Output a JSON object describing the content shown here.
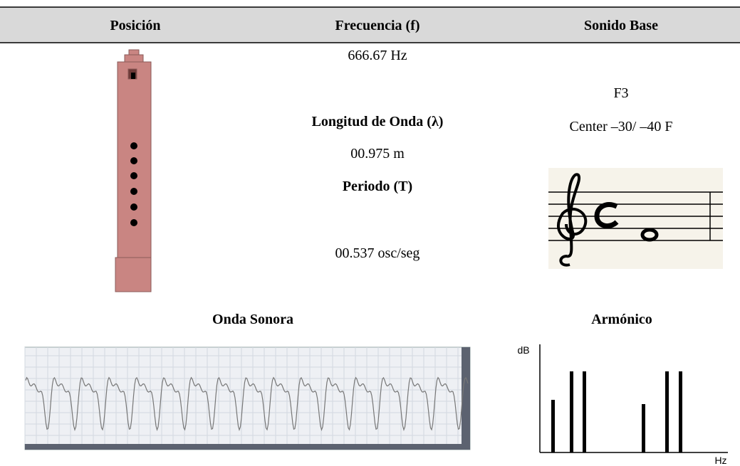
{
  "header": {
    "columns": [
      "Posición",
      "Frecuencia (f)",
      "Sonido Base"
    ]
  },
  "frequency": {
    "value": "666.67 Hz"
  },
  "wavelength": {
    "label": "Longitud de Onda (λ)",
    "value": "00.975 m"
  },
  "period": {
    "label": "Periodo (T)",
    "value": "00.537 osc/seg"
  },
  "base_sound": {
    "note": "F3",
    "tuning": "Center –30/ –40 F"
  },
  "sections": {
    "wave": "Onda Sonora",
    "harmonic": "Armónico"
  },
  "harmonic_chart": {
    "y_label": "dB",
    "x_label": "Hz"
  }
}
